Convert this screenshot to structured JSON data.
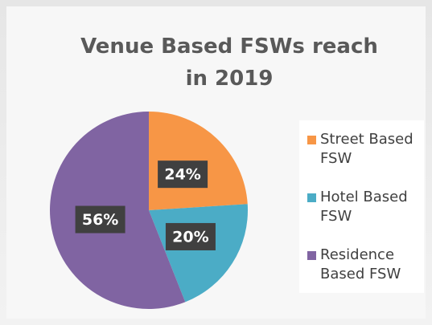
{
  "chart_data": {
    "type": "pie",
    "title": "Venue Based FSWs reach in 2019",
    "categories": [
      "Street Based FSW",
      "Hotel Based FSW",
      "Residence Based FSW"
    ],
    "values": [
      24,
      20,
      56
    ],
    "value_labels": [
      "24%",
      "20%",
      "56%"
    ],
    "colors": [
      "#f79646",
      "#4bacc6",
      "#8064a2"
    ],
    "legend": "right"
  }
}
